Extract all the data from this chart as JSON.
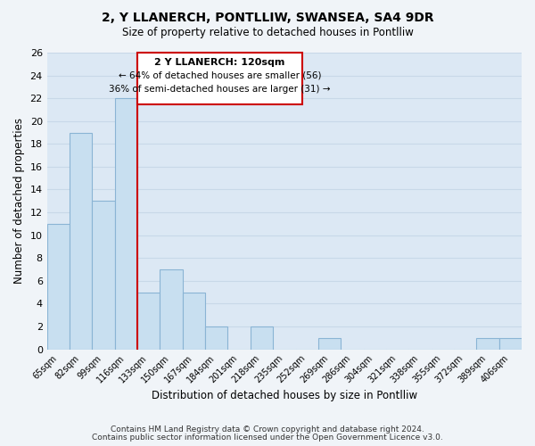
{
  "title": "2, Y LLANERCH, PONTLLIW, SWANSEA, SA4 9DR",
  "subtitle": "Size of property relative to detached houses in Pontlliw",
  "xlabel": "Distribution of detached houses by size in Pontlliw",
  "ylabel": "Number of detached properties",
  "bar_color": "#c8dff0",
  "bar_edge_color": "#8ab4d4",
  "vline_x_index": 3,
  "vline_color": "#cc0000",
  "categories": [
    "65sqm",
    "82sqm",
    "99sqm",
    "116sqm",
    "133sqm",
    "150sqm",
    "167sqm",
    "184sqm",
    "201sqm",
    "218sqm",
    "235sqm",
    "252sqm",
    "269sqm",
    "286sqm",
    "304sqm",
    "321sqm",
    "338sqm",
    "355sqm",
    "372sqm",
    "389sqm",
    "406sqm"
  ],
  "values": [
    11,
    19,
    13,
    22,
    5,
    7,
    5,
    2,
    0,
    2,
    0,
    0,
    1,
    0,
    0,
    0,
    0,
    0,
    0,
    1,
    1
  ],
  "ylim": [
    0,
    26
  ],
  "yticks": [
    0,
    2,
    4,
    6,
    8,
    10,
    12,
    14,
    16,
    18,
    20,
    22,
    24,
    26
  ],
  "annotation_title": "2 Y LLANERCH: 120sqm",
  "annotation_line1": "← 64% of detached houses are smaller (56)",
  "annotation_line2": "36% of semi-detached houses are larger (31) →",
  "annotation_box_color": "#ffffff",
  "annotation_box_edge": "#cc0000",
  "grid_color": "#c8d8e8",
  "background_color": "#dce8f4",
  "fig_background": "#f0f4f8",
  "footer1": "Contains HM Land Registry data © Crown copyright and database right 2024.",
  "footer2": "Contains public sector information licensed under the Open Government Licence v3.0."
}
